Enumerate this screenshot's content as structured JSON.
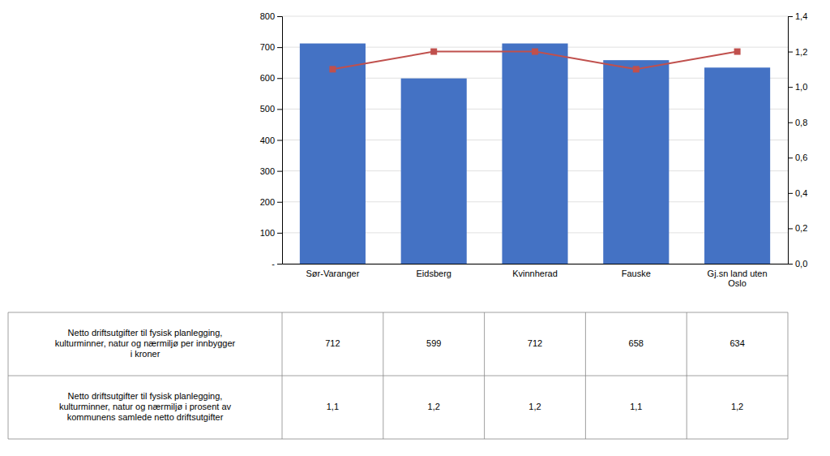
{
  "chart_data": {
    "type": "bar",
    "categories": [
      "Sør-Varanger",
      "Eidsberg",
      "Kvinnherad",
      "Fauske",
      "Gj.sn land uten\nOslo"
    ],
    "series": [
      {
        "name": "Netto driftsutgifter til fysisk planlegging,\nkulturminner, natur og nærmiljø per innbygger\ni kroner",
        "type": "bar",
        "color": "#4472C4",
        "values": [
          712,
          599,
          712,
          658,
          634
        ]
      },
      {
        "name": "Netto driftsutgifter til fysisk planlegging,\nkulturminner, natur og nærmiljø i prosent av\nkommunens samlede netto driftsutgifter",
        "type": "line",
        "axis": "y2",
        "color": "#C0504D",
        "marker": "square",
        "values": [
          1.1,
          1.2,
          1.2,
          1.1,
          1.2
        ],
        "value_labels": [
          "1,1",
          "1,2",
          "1,2",
          "1,1",
          "1,2"
        ]
      }
    ],
    "ylim": [
      0,
      800
    ],
    "yticks": [
      {
        "value": 0,
        "label": "-"
      },
      100,
      200,
      300,
      400,
      500,
      600,
      700,
      800
    ],
    "y2lim": [
      0.0,
      1.4
    ],
    "y2ticks": [
      {
        "value": 0.0,
        "label": "0,0"
      },
      {
        "value": 0.2,
        "label": "0,2"
      },
      {
        "value": 0.4,
        "label": "0,4"
      },
      {
        "value": 0.6,
        "label": "0,6"
      },
      {
        "value": 0.8,
        "label": "0,8"
      },
      {
        "value": 1.0,
        "label": "1,0"
      },
      {
        "value": 1.2,
        "label": "1,2"
      },
      {
        "value": 1.4,
        "label": "1,4"
      }
    ],
    "grid": true,
    "data_labels": true
  }
}
